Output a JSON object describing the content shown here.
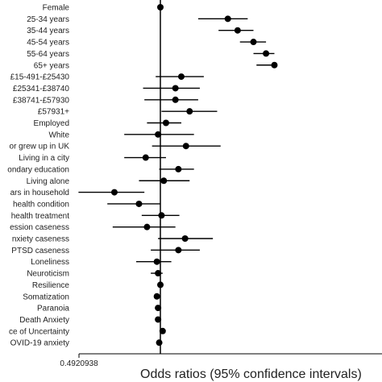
{
  "chart_data": {
    "type": "scatter",
    "subtype": "forest-plot",
    "xlabel": "Odds ratios (95% confidence intervals)",
    "x_tick_labels": [
      "0.4920938"
    ],
    "reference_line_x": 1,
    "grid": false,
    "legend": "none",
    "colors": {
      "point": "#000000",
      "line": "#000000"
    },
    "rows": [
      {
        "label": "Female",
        "or": 1.0,
        "lo": 1.0,
        "hi": 1.0
      },
      {
        "label": "25-34 years",
        "or": 1.8,
        "lo": 1.39,
        "hi": 2.14
      },
      {
        "label": "35-44 years",
        "or": 1.96,
        "lo": 1.66,
        "hi": 2.25
      },
      {
        "label": "45-54 years",
        "or": 2.25,
        "lo": 2.0,
        "hi": 2.51
      },
      {
        "label": "55-64 years",
        "or": 2.51,
        "lo": 2.25,
        "hi": 2.7
      },
      {
        "label": "65+ years",
        "or": 2.7,
        "lo": 2.31,
        "hi": 2.7
      },
      {
        "label": "£15-491-£25430",
        "or": 1.2,
        "lo": 0.96,
        "hi": 1.46
      },
      {
        "label": "£25341-£38740",
        "or": 1.14,
        "lo": 0.86,
        "hi": 1.41
      },
      {
        "label": "£38741-£57930",
        "or": 1.14,
        "lo": 0.87,
        "hi": 1.39
      },
      {
        "label": "£57931+",
        "or": 1.29,
        "lo": 1.01,
        "hi": 1.64
      },
      {
        "label": "Employed",
        "or": 1.05,
        "lo": 0.89,
        "hi": 1.2
      },
      {
        "label": "White",
        "or": 0.98,
        "lo": 0.73,
        "hi": 1.34
      },
      {
        "label": "or grew up in UK",
        "or": 1.25,
        "lo": 0.93,
        "hi": 1.69
      },
      {
        "label": "Living in a city",
        "or": 0.88,
        "lo": 0.73,
        "hi": 1.05
      },
      {
        "label": "ondary education",
        "or": 1.17,
        "lo": 0.99,
        "hi": 1.34
      },
      {
        "label": "Living alone",
        "or": 1.03,
        "lo": 0.83,
        "hi": 1.29
      },
      {
        "label": "ars in household",
        "or": 0.67,
        "lo": 0.49,
        "hi": 0.87
      },
      {
        "label": "health condition",
        "or": 0.83,
        "lo": 0.63,
        "hi": 1.0
      },
      {
        "label": "health treatment",
        "or": 1.01,
        "lo": 0.85,
        "hi": 1.18
      },
      {
        "label": "ession caseness",
        "or": 0.89,
        "lo": 0.66,
        "hi": 1.14
      },
      {
        "label": "nxiety caseness",
        "or": 1.24,
        "lo": 0.98,
        "hi": 1.58
      },
      {
        "label": "PTSD caseness",
        "or": 1.17,
        "lo": 0.92,
        "hi": 1.41
      },
      {
        "label": "Loneliness",
        "or": 0.97,
        "lo": 0.81,
        "hi": 1.1
      },
      {
        "label": "Neuroticism",
        "or": 0.98,
        "lo": 0.92,
        "hi": 1.02
      },
      {
        "label": "Resilience",
        "or": 1.0,
        "lo": 0.99,
        "hi": 1.02
      },
      {
        "label": "Somatization",
        "or": 0.97,
        "lo": 0.95,
        "hi": 0.99
      },
      {
        "label": "Paranoia",
        "or": 0.98,
        "lo": 0.96,
        "hi": 1.0
      },
      {
        "label": "Death Anxiety",
        "or": 0.98,
        "lo": 0.96,
        "hi": 1.0
      },
      {
        "label": "ce of Uncertainty",
        "or": 1.02,
        "lo": 1.0,
        "hi": 1.04
      },
      {
        "label": "OVID-19 anxiety",
        "or": 0.99,
        "lo": 0.97,
        "hi": 1.01
      }
    ]
  }
}
